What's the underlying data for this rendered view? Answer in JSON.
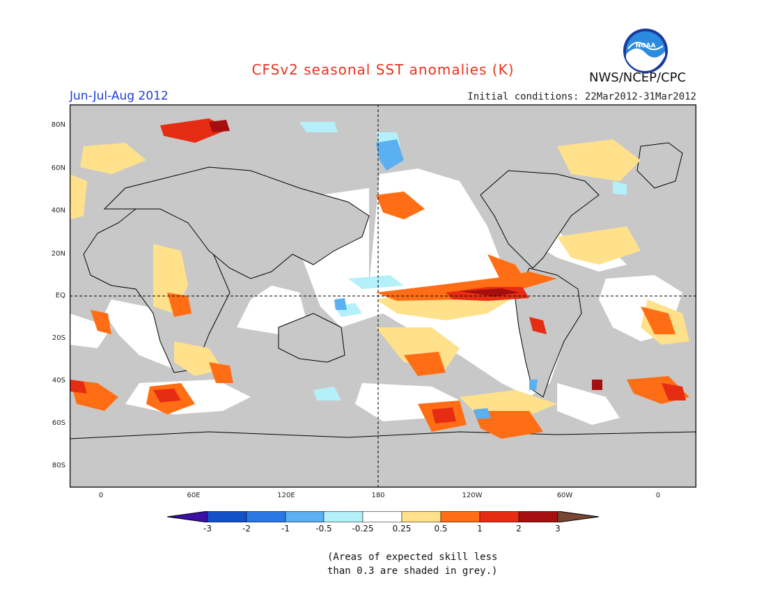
{
  "header": {
    "title": "CFSv2 seasonal SST anomalies (K)",
    "season": "Jun-Jul-Aug 2012",
    "initial_conditions": "Initial conditions: 22Mar2012-31Mar2012",
    "agency": "NWS/NCEP/CPC",
    "logo_text": "NOAA"
  },
  "map": {
    "lat_labels": [
      "80N",
      "60N",
      "40N",
      "20N",
      "EQ",
      "20S",
      "40S",
      "60S",
      "80S"
    ],
    "lon_labels": [
      "0",
      "60E",
      "120E",
      "180",
      "120W",
      "60W",
      "0"
    ],
    "land_color": "#c8c8c8",
    "low_skill_color": "#c8c8c8"
  },
  "legend": {
    "tick_labels": [
      "-3",
      "-2",
      "-1",
      "-0.5",
      "-0.25",
      "0.25",
      "0.5",
      "1",
      "2",
      "3"
    ],
    "colors": [
      "#3b0fa8",
      "#1450c8",
      "#2a78e4",
      "#5ab0f0",
      "#b4f0fa",
      "#ffffff",
      "#ffe18c",
      "#ff6e14",
      "#e62d14",
      "#a50f0f",
      "#784632"
    ],
    "note_line1": "(Areas of expected skill less",
    "note_line2": "than 0.3 are shaded in grey.)"
  }
}
